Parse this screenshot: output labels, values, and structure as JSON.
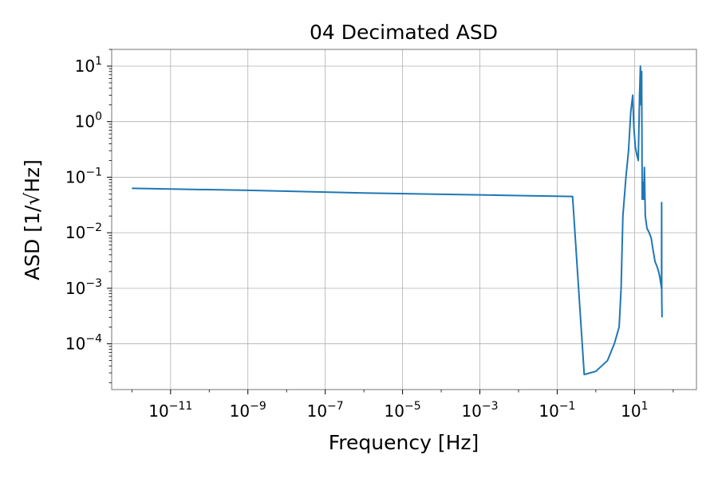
{
  "chart_data": {
    "type": "line",
    "title": "04 Decimated ASD",
    "xlabel": "Frequency [Hz]",
    "ylabel": "ASD [1/√Hz]",
    "xscale": "log",
    "yscale": "log",
    "xlim": [
      3e-13,
      400
    ],
    "ylim": [
      1.5e-05,
      20
    ],
    "grid": true,
    "line_color": "#1f77b4",
    "xticks": [
      {
        "value": 1e-11,
        "base": "10",
        "exp": "−11"
      },
      {
        "value": 1e-09,
        "base": "10",
        "exp": "−9"
      },
      {
        "value": 1e-07,
        "base": "10",
        "exp": "−7"
      },
      {
        "value": 1e-05,
        "base": "10",
        "exp": "−5"
      },
      {
        "value": 0.001,
        "base": "10",
        "exp": "−3"
      },
      {
        "value": 0.1,
        "base": "10",
        "exp": "−1"
      },
      {
        "value": 10,
        "base": "10",
        "exp": "1"
      }
    ],
    "yticks": [
      {
        "value": 0.0001,
        "base": "10",
        "exp": "−4"
      },
      {
        "value": 0.001,
        "base": "10",
        "exp": "−3"
      },
      {
        "value": 0.01,
        "base": "10",
        "exp": "−2"
      },
      {
        "value": 0.1,
        "base": "10",
        "exp": "−1"
      },
      {
        "value": 1,
        "base": "10",
        "exp": "0"
      },
      {
        "value": 10,
        "base": "10",
        "exp": "1"
      }
    ],
    "series": [
      {
        "points": [
          [
            1e-12,
            0.063
          ],
          [
            1e-09,
            0.058
          ],
          [
            1e-06,
            0.052
          ],
          [
            0.001,
            0.048
          ],
          [
            0.25,
            0.045
          ],
          [
            0.5,
            2.8e-05
          ],
          [
            1.0,
            3.2e-05
          ],
          [
            2.0,
            5e-05
          ],
          [
            3.0,
            0.0001
          ],
          [
            4.0,
            0.0002
          ],
          [
            4.5,
            0.001
          ],
          [
            5.0,
            0.02
          ],
          [
            6.0,
            0.1
          ],
          [
            7.0,
            0.3
          ],
          [
            8.0,
            1.5
          ],
          [
            9.0,
            3.0
          ],
          [
            9.6,
            0.8
          ],
          [
            10.5,
            0.35
          ],
          [
            11.5,
            0.25
          ],
          [
            12.5,
            0.2
          ],
          [
            13.5,
            3.0
          ],
          [
            14.2,
            10.0
          ],
          [
            14.8,
            2.0
          ],
          [
            15.3,
            8.0
          ],
          [
            15.8,
            0.04
          ],
          [
            16.5,
            0.08
          ],
          [
            17.2,
            0.04
          ],
          [
            18.0,
            0.15
          ],
          [
            19.0,
            0.02
          ],
          [
            21.0,
            0.012
          ],
          [
            24.0,
            0.01
          ],
          [
            27.0,
            0.008
          ],
          [
            30.0,
            0.005
          ],
          [
            34.0,
            0.003
          ],
          [
            38.0,
            0.0025
          ],
          [
            42.0,
            0.002
          ],
          [
            45.0,
            0.0016
          ],
          [
            48.0,
            0.0012
          ],
          [
            50.0,
            0.001
          ],
          [
            50.3,
            0.035
          ],
          [
            50.6,
            0.0008
          ],
          [
            51.0,
            0.0005
          ],
          [
            51.5,
            0.0003
          ]
        ]
      }
    ]
  }
}
